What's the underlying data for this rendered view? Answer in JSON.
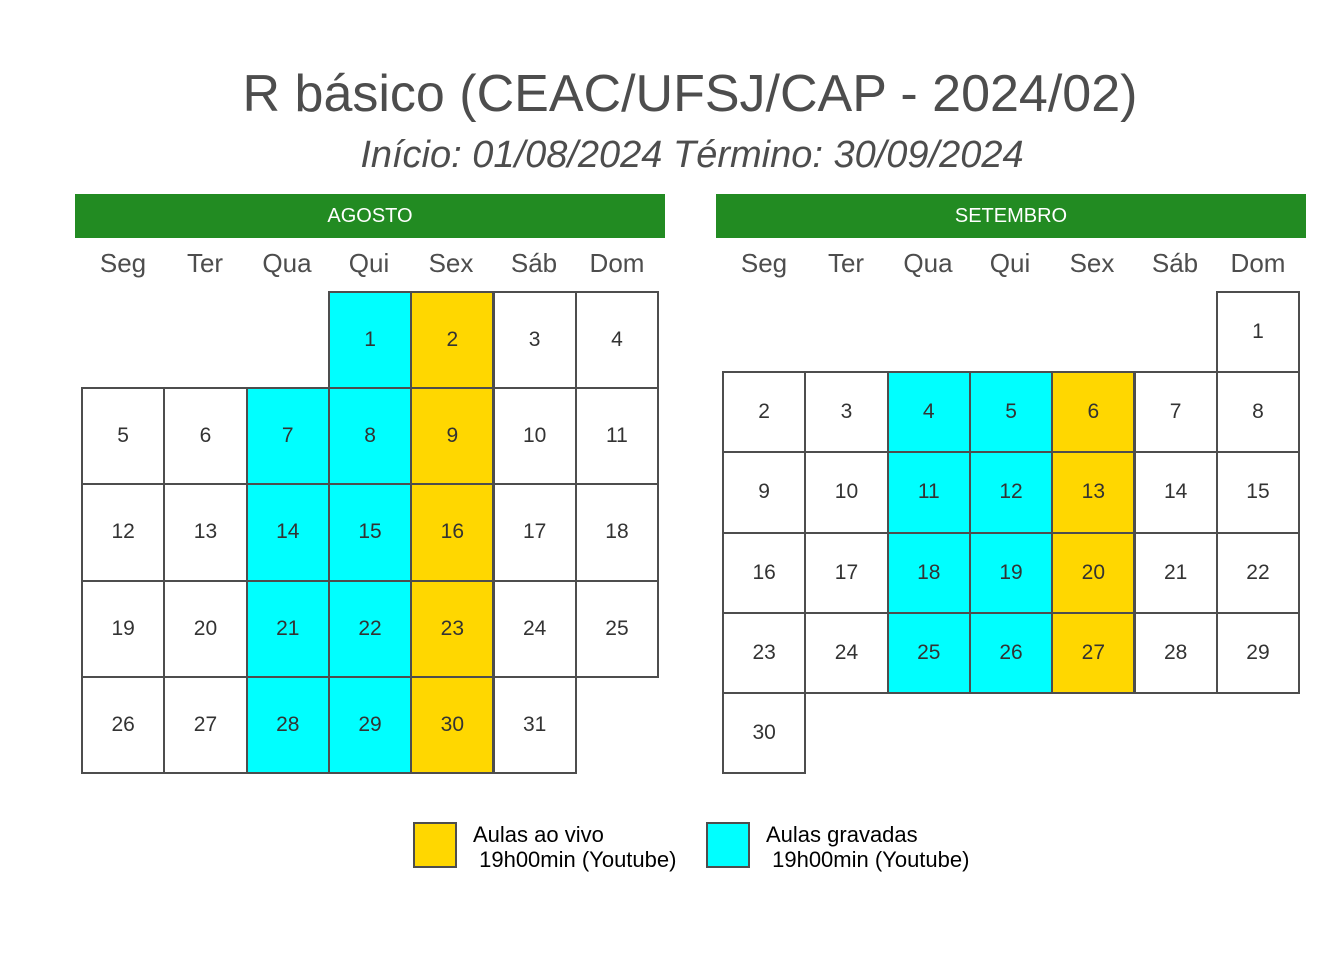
{
  "title": "R básico (CEAC/UFSJ/CAP - 2024/02)",
  "subtitle": "Início: 01/08/2024  Término: 30/09/2024",
  "colors": {
    "header": "#228b22",
    "live": "#ffd700",
    "recorded": "#00ffff",
    "normal": "#ffffff"
  },
  "weekdays": [
    "Seg",
    "Ter",
    "Qua",
    "Qui",
    "Sex",
    "Sáb",
    "Dom"
  ],
  "months": [
    {
      "name": "AGOSTO",
      "rows": [
        [
          null,
          null,
          null,
          {
            "d": "1",
            "t": "recorded"
          },
          {
            "d": "2",
            "t": "live"
          },
          {
            "d": "3",
            "t": "normal"
          },
          {
            "d": "4",
            "t": "normal"
          }
        ],
        [
          {
            "d": "5",
            "t": "normal"
          },
          {
            "d": "6",
            "t": "normal"
          },
          {
            "d": "7",
            "t": "recorded"
          },
          {
            "d": "8",
            "t": "recorded"
          },
          {
            "d": "9",
            "t": "live"
          },
          {
            "d": "10",
            "t": "normal"
          },
          {
            "d": "11",
            "t": "normal"
          }
        ],
        [
          {
            "d": "12",
            "t": "normal"
          },
          {
            "d": "13",
            "t": "normal"
          },
          {
            "d": "14",
            "t": "recorded"
          },
          {
            "d": "15",
            "t": "recorded"
          },
          {
            "d": "16",
            "t": "live"
          },
          {
            "d": "17",
            "t": "normal"
          },
          {
            "d": "18",
            "t": "normal"
          }
        ],
        [
          {
            "d": "19",
            "t": "normal"
          },
          {
            "d": "20",
            "t": "normal"
          },
          {
            "d": "21",
            "t": "recorded"
          },
          {
            "d": "22",
            "t": "recorded"
          },
          {
            "d": "23",
            "t": "live"
          },
          {
            "d": "24",
            "t": "normal"
          },
          {
            "d": "25",
            "t": "normal"
          }
        ],
        [
          {
            "d": "26",
            "t": "normal"
          },
          {
            "d": "27",
            "t": "normal"
          },
          {
            "d": "28",
            "t": "recorded"
          },
          {
            "d": "29",
            "t": "recorded"
          },
          {
            "d": "30",
            "t": "live"
          },
          {
            "d": "31",
            "t": "normal"
          },
          null
        ]
      ]
    },
    {
      "name": "SETEMBRO",
      "rows": [
        [
          null,
          null,
          null,
          null,
          null,
          null,
          {
            "d": "1",
            "t": "normal"
          }
        ],
        [
          {
            "d": "2",
            "t": "normal"
          },
          {
            "d": "3",
            "t": "normal"
          },
          {
            "d": "4",
            "t": "recorded"
          },
          {
            "d": "5",
            "t": "recorded"
          },
          {
            "d": "6",
            "t": "live"
          },
          {
            "d": "7",
            "t": "normal"
          },
          {
            "d": "8",
            "t": "normal"
          }
        ],
        [
          {
            "d": "9",
            "t": "normal"
          },
          {
            "d": "10",
            "t": "normal"
          },
          {
            "d": "11",
            "t": "recorded"
          },
          {
            "d": "12",
            "t": "recorded"
          },
          {
            "d": "13",
            "t": "live"
          },
          {
            "d": "14",
            "t": "normal"
          },
          {
            "d": "15",
            "t": "normal"
          }
        ],
        [
          {
            "d": "16",
            "t": "normal"
          },
          {
            "d": "17",
            "t": "normal"
          },
          {
            "d": "18",
            "t": "recorded"
          },
          {
            "d": "19",
            "t": "recorded"
          },
          {
            "d": "20",
            "t": "live"
          },
          {
            "d": "21",
            "t": "normal"
          },
          {
            "d": "22",
            "t": "normal"
          }
        ],
        [
          {
            "d": "23",
            "t": "normal"
          },
          {
            "d": "24",
            "t": "normal"
          },
          {
            "d": "25",
            "t": "recorded"
          },
          {
            "d": "26",
            "t": "recorded"
          },
          {
            "d": "27",
            "t": "live"
          },
          {
            "d": "28",
            "t": "normal"
          },
          {
            "d": "29",
            "t": "normal"
          }
        ],
        [
          {
            "d": "30",
            "t": "normal"
          },
          null,
          null,
          null,
          null,
          null,
          null
        ]
      ]
    }
  ],
  "legend": [
    {
      "type": "live",
      "text": "Aulas ao vivo\n 19h00min (Youtube)"
    },
    {
      "type": "recorded",
      "text": "Aulas gravadas\n 19h00min (Youtube)"
    }
  ]
}
